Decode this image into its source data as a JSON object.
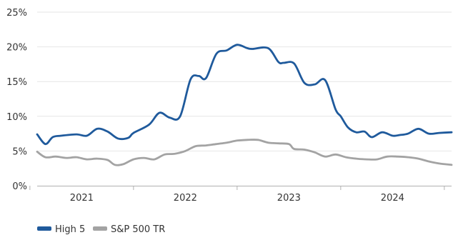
{
  "chart_data": {
    "type": "line",
    "title": "",
    "xlabel": "",
    "ylabel": "",
    "ylim": [
      0,
      25
    ],
    "xlim": [
      2020.62,
      2024.62
    ],
    "y_ticks": [
      0,
      5,
      10,
      15,
      20,
      25
    ],
    "y_tick_labels": [
      "0%",
      "5%",
      "10%",
      "15%",
      "20%",
      "25%"
    ],
    "x_tick_positions": [
      2020.55,
      2021.55,
      2022.55,
      2023.55,
      2024.55
    ],
    "x_category_labels": [
      {
        "label": "2021",
        "x": 2021.05
      },
      {
        "label": "2022",
        "x": 2022.05
      },
      {
        "label": "2023",
        "x": 2023.05
      },
      {
        "label": "2024",
        "x": 2024.05
      }
    ],
    "grid": true,
    "legend_position": "bottom-left",
    "series": [
      {
        "name": "High 5",
        "color": "#1f5a9c",
        "x": [
          2020.62,
          2020.7,
          2020.77,
          2020.85,
          2021.0,
          2021.1,
          2021.2,
          2021.3,
          2021.4,
          2021.5,
          2021.55,
          2021.7,
          2021.8,
          2021.9,
          2022.0,
          2022.1,
          2022.18,
          2022.25,
          2022.35,
          2022.45,
          2022.55,
          2022.65,
          2022.7,
          2022.85,
          2022.95,
          2023.0,
          2023.1,
          2023.2,
          2023.3,
          2023.4,
          2023.5,
          2023.55,
          2023.62,
          2023.7,
          2023.78,
          2023.85,
          2023.95,
          2024.05,
          2024.12,
          2024.2,
          2024.3,
          2024.4,
          2024.5,
          2024.62
        ],
        "y": [
          7.4,
          6.0,
          7.0,
          7.2,
          7.4,
          7.2,
          8.2,
          7.8,
          6.8,
          6.9,
          7.6,
          8.8,
          10.5,
          9.8,
          10.0,
          15.3,
          15.8,
          15.5,
          19.0,
          19.5,
          20.3,
          19.8,
          19.7,
          19.8,
          17.8,
          17.7,
          17.6,
          14.8,
          14.6,
          15.2,
          11.0,
          10.0,
          8.4,
          7.7,
          7.8,
          7.0,
          7.7,
          7.2,
          7.3,
          7.5,
          8.2,
          7.5,
          7.6,
          7.7
        ]
      },
      {
        "name": "S&P 500 TR",
        "color": "#a3a3a3",
        "x": [
          2020.62,
          2020.7,
          2020.8,
          2020.9,
          2021.0,
          2021.1,
          2021.2,
          2021.3,
          2021.37,
          2021.45,
          2021.55,
          2021.65,
          2021.75,
          2021.85,
          2021.95,
          2022.05,
          2022.15,
          2022.25,
          2022.35,
          2022.45,
          2022.55,
          2022.65,
          2022.75,
          2022.85,
          2022.95,
          2023.05,
          2023.1,
          2023.2,
          2023.3,
          2023.4,
          2023.5,
          2023.6,
          2023.7,
          2023.8,
          2023.9,
          2024.0,
          2024.1,
          2024.2,
          2024.3,
          2024.4,
          2024.5,
          2024.62
        ],
        "y": [
          4.9,
          4.1,
          4.2,
          4.0,
          4.1,
          3.8,
          3.9,
          3.7,
          3.0,
          3.1,
          3.8,
          4.0,
          3.8,
          4.5,
          4.6,
          5.0,
          5.7,
          5.8,
          6.0,
          6.2,
          6.5,
          6.6,
          6.6,
          6.2,
          6.1,
          6.0,
          5.3,
          5.2,
          4.8,
          4.2,
          4.5,
          4.1,
          3.9,
          3.8,
          3.8,
          4.2,
          4.2,
          4.1,
          3.9,
          3.5,
          3.2,
          3.0
        ]
      }
    ]
  }
}
